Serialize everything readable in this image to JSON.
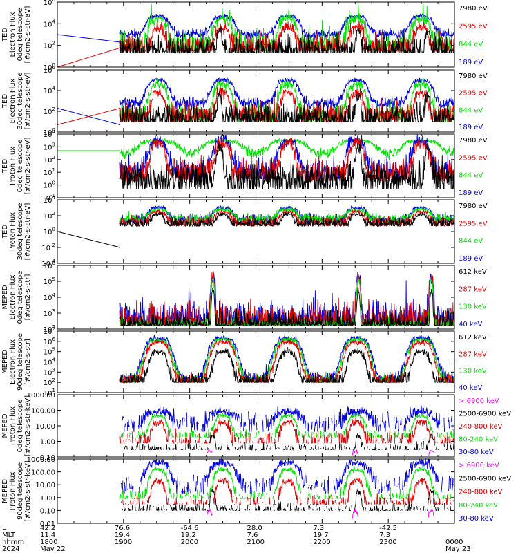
{
  "colors": {
    "black": "#000000",
    "red": "#e00000",
    "green": "#00e000",
    "blue": "#0000e0",
    "magenta": "#ff00ff"
  },
  "chart_data": [
    {
      "type": "line",
      "ylabel": [
        "TED",
        "Electron Flux",
        "0deg telescope",
        "[#/cm2-s-str-eV]"
      ],
      "log_y": true,
      "ylim": [
        1,
        1000000.0
      ],
      "ticks": [
        "10^6",
        "10^4",
        "10^2",
        "10^0"
      ],
      "legend": [
        {
          "label": "7980 eV",
          "color": "black"
        },
        {
          "label": "2595 eV",
          "color": "red"
        },
        {
          "label": "844 eV",
          "color": "green"
        },
        {
          "label": "189 eV",
          "color": "blue"
        }
      ],
      "series": [
        {
          "color": "blue",
          "base": 1000,
          "peak": 50000,
          "noise": 0.35,
          "sharp": 1.3,
          "preline": [
            1000,
            200
          ]
        },
        {
          "color": "green",
          "base": 80,
          "peak": 30000,
          "noise": 0.9,
          "sharp": 1.6,
          "floor": 30,
          "spikes": true
        },
        {
          "color": "red",
          "base": 60,
          "peak": 5000,
          "noise": 0.9,
          "sharp": 2.2,
          "floor": 30,
          "preline": [
            1,
            60
          ]
        },
        {
          "color": "black",
          "base": 30,
          "peak": 2000,
          "noise": 1.0,
          "sharp": 3.0,
          "floor": 20,
          "shape": "belt"
        }
      ]
    },
    {
      "type": "line",
      "ylabel": [
        "TED",
        "Electron Flux",
        "30deg telescope",
        "[#/cm2-s-str-eV]"
      ],
      "log_y": true,
      "ylim": [
        1,
        1000000.0
      ],
      "ticks": [
        "10^6",
        "10^4",
        "10^2",
        "10^0"
      ],
      "legend": [
        {
          "label": "7980 eV",
          "color": "black"
        },
        {
          "label": "2595 eV",
          "color": "red"
        },
        {
          "label": "844 eV",
          "color": "green"
        },
        {
          "label": "189 eV",
          "color": "blue"
        }
      ],
      "series": [
        {
          "color": "blue",
          "base": 600,
          "peak": 100000,
          "noise": 0.4,
          "sharp": 1.3,
          "preline": [
            200,
            5
          ]
        },
        {
          "color": "green",
          "base": 40,
          "peak": 40000,
          "noise": 0.9,
          "sharp": 1.6,
          "floor": 10
        },
        {
          "color": "red",
          "base": 40,
          "peak": 6000,
          "noise": 0.9,
          "sharp": 2.2,
          "floor": 10,
          "preline": [
            5,
            200
          ]
        },
        {
          "color": "black",
          "base": 20,
          "peak": 3000,
          "noise": 1.0,
          "sharp": 3.0,
          "floor": 10,
          "shape": "belt"
        }
      ]
    },
    {
      "type": "line",
      "ylabel": [
        "TED",
        "Proton Flux",
        "0deg telescope",
        "[#/cm2-s-str-eV]"
      ],
      "log_y": true,
      "ylim": [
        0.1,
        10000
      ],
      "ticks": [
        "10^4",
        "10^3",
        "10^2",
        "10^1",
        "10^0",
        "10^-1"
      ],
      "legend": [
        {
          "label": "7980 eV",
          "color": "black"
        },
        {
          "label": "2595 eV",
          "color": "red"
        },
        {
          "label": "844 eV",
          "color": "green"
        },
        {
          "label": "189 eV",
          "color": "blue"
        }
      ],
      "series": [
        {
          "color": "green",
          "base": 300,
          "peak": 3000,
          "noise": 0.3,
          "sharp": 0.8,
          "preline": [
            500,
            500
          ]
        },
        {
          "color": "blue",
          "base": 10,
          "peak": 3000,
          "noise": 0.8,
          "sharp": 1.5,
          "floor": 3
        },
        {
          "color": "red",
          "base": 8,
          "peak": 2000,
          "noise": 0.8,
          "sharp": 2.0,
          "floor": 2
        },
        {
          "color": "black",
          "base": 3,
          "peak": 800,
          "noise": 1.0,
          "sharp": 2.5,
          "floor": 0.5,
          "shape": "belt"
        }
      ]
    },
    {
      "type": "line",
      "ylabel": [
        "TED",
        "Proton Flux",
        "30deg telescope",
        "[#/cm2-s-str-eV]"
      ],
      "log_y": true,
      "ylim": [
        0.0001,
        10000
      ],
      "ticks": [
        "10^4",
        "10^2",
        "10^0",
        "10^-2",
        "10^-4"
      ],
      "legend": [
        {
          "label": "7980 eV",
          "color": "black"
        },
        {
          "label": "2595 eV",
          "color": "red"
        },
        {
          "label": "844 eV",
          "color": "green"
        },
        {
          "label": "189 eV",
          "color": "blue"
        }
      ],
      "series": [
        {
          "color": "blue",
          "base": 30,
          "peak": 1000,
          "noise": 0.5,
          "sharp": 1.6,
          "floor": 5
        },
        {
          "color": "green",
          "base": 40,
          "peak": 600,
          "noise": 0.5,
          "sharp": 1.6,
          "floor": 5
        },
        {
          "color": "red",
          "base": 15,
          "peak": 300,
          "noise": 0.5,
          "sharp": 2.0,
          "floor": 5
        },
        {
          "color": "black",
          "base": 10,
          "peak": 150,
          "noise": 0.5,
          "sharp": 2.5,
          "floor": 5,
          "preline": [
            1,
            0.01
          ]
        }
      ]
    },
    {
      "type": "line",
      "ylabel": [
        "MEPED",
        "Electron Flux",
        "0deg telescope",
        "[#/cm2-s-str]"
      ],
      "log_y": true,
      "ylim": [
        50,
        1000000
      ],
      "ticks": [
        "10^6",
        "10^5",
        "10^4",
        "10^3",
        "10^2"
      ],
      "legend": [
        {
          "label": "612 keV",
          "color": "black"
        },
        {
          "label": "287 keV",
          "color": "red"
        },
        {
          "label": "130 keV",
          "color": "green"
        },
        {
          "label": "40 keV",
          "color": "blue"
        }
      ],
      "series": [
        {
          "color": "blue",
          "base": 200,
          "peak": 200000,
          "noise": 0.9,
          "sharp": 3.0,
          "floor": 90,
          "spikes": true,
          "shape": "belt2"
        },
        {
          "color": "red",
          "base": 150,
          "peak": 150000,
          "noise": 0.9,
          "sharp": 3.5,
          "floor": 90,
          "shape": "belt2"
        },
        {
          "color": "green",
          "base": 100,
          "peak": 100000,
          "noise": 0.3,
          "sharp": 4.0,
          "floor": 90,
          "shape": "belt2"
        },
        {
          "color": "black",
          "base": 100,
          "peak": 20000,
          "noise": 0.6,
          "sharp": 5.0,
          "floor": 90,
          "shape": "belt2"
        }
      ]
    },
    {
      "type": "line",
      "ylabel": [
        "MEPED",
        "Electron Flux",
        "90deg telescope",
        "[#/cm2-s-str]"
      ],
      "log_y": true,
      "ylim": [
        10,
        10000000
      ],
      "ticks": [
        "10^7",
        "10^6",
        "10^5",
        "10^4",
        "10^3",
        "10^2",
        "10^1"
      ],
      "legend": [
        {
          "label": "612 keV",
          "color": "black"
        },
        {
          "label": "287 keV",
          "color": "red"
        },
        {
          "label": "130 keV",
          "color": "green"
        },
        {
          "label": "40 keV",
          "color": "blue"
        }
      ],
      "series": [
        {
          "color": "blue",
          "base": 200,
          "peak": 2000000,
          "noise": 0.5,
          "sharp": 1.0,
          "floor": 100
        },
        {
          "color": "green",
          "base": 150,
          "peak": 1500000,
          "noise": 0.5,
          "sharp": 1.1,
          "floor": 100
        },
        {
          "color": "red",
          "base": 150,
          "peak": 800000,
          "noise": 0.5,
          "sharp": 1.2,
          "floor": 100
        },
        {
          "color": "black",
          "base": 100,
          "peak": 100000,
          "noise": 0.6,
          "sharp": 1.6,
          "floor": 100
        }
      ]
    },
    {
      "type": "line",
      "ylabel": [
        "MEPED",
        "Proton Flux",
        "0deg telescope",
        "[#/cm2-s-str-keV]"
      ],
      "log_y": true,
      "ylim": [
        0.03,
        1000
      ],
      "ticks": [
        "1000.00",
        "100.00",
        "10.00",
        "1.00",
        "0.10"
      ],
      "legend": [
        {
          "label": "> 6900 keV",
          "color": "magenta"
        },
        {
          "label": "2500-6900 keV",
          "color": "black"
        },
        {
          "label": "240-800 keV",
          "color": "red"
        },
        {
          "label": "80-240 keV",
          "color": "green"
        },
        {
          "label": "30-80 keV",
          "color": "blue"
        }
      ],
      "series": [
        {
          "color": "blue",
          "base": 8,
          "peak": 60,
          "noise": 0.6,
          "sharp": 1.2,
          "floor": 2,
          "gappy": true
        },
        {
          "color": "green",
          "base": 1,
          "peak": 30,
          "noise": 0.3,
          "sharp": 1.8,
          "floor": 0.8,
          "gappy": true
        },
        {
          "color": "red",
          "base": 0.4,
          "peak": 10,
          "noise": 0.5,
          "sharp": 2.2,
          "floor": 0.3,
          "gappy": true
        },
        {
          "color": "black",
          "base": 0.1,
          "peak": 1,
          "noise": 0.4,
          "sharp": 3.0,
          "floor": 0.1,
          "gappy": true,
          "shape": "belt2"
        },
        {
          "color": "magenta",
          "base": 0.04,
          "peak": 0.08,
          "noise": 0.2,
          "sharp": 3.5,
          "floor": 0.04,
          "shape": "peaks"
        }
      ]
    },
    {
      "type": "line",
      "ylabel": [
        "MEPED",
        "Proton Flux",
        "90deg telescope",
        "[#/cm2-s-str-keV]"
      ],
      "log_y": true,
      "ylim": [
        0.01,
        1000
      ],
      "ticks": [
        "1000.00",
        "100.00",
        "10.00",
        "1.00",
        "0.10",
        "0.01"
      ],
      "legend": [
        {
          "label": "> 6900 keV",
          "color": "magenta"
        },
        {
          "label": "2500-6900 keV",
          "color": "black"
        },
        {
          "label": "240-800 keV",
          "color": "red"
        },
        {
          "label": "80-240 keV",
          "color": "green"
        },
        {
          "label": "30-80 keV",
          "color": "blue"
        }
      ],
      "series": [
        {
          "color": "blue",
          "base": 8,
          "peak": 500,
          "noise": 0.6,
          "sharp": 1.2,
          "floor": 2,
          "gappy": true
        },
        {
          "color": "green",
          "base": 1,
          "peak": 150,
          "noise": 0.4,
          "sharp": 1.6,
          "floor": 0.8,
          "gappy": true
        },
        {
          "color": "red",
          "base": 0.3,
          "peak": 20,
          "noise": 0.5,
          "sharp": 2.2,
          "floor": 0.3,
          "gappy": true
        },
        {
          "color": "black",
          "base": 0.1,
          "peak": 3,
          "noise": 0.4,
          "sharp": 3.0,
          "floor": 0.1,
          "gappy": true,
          "shape": "belt2"
        },
        {
          "color": "magenta",
          "base": 0.02,
          "peak": 0.1,
          "noise": 0.2,
          "sharp": 3.5,
          "floor": 0.02,
          "shape": "peaks"
        }
      ]
    }
  ],
  "x_axis": {
    "row_labels": [
      "L",
      "MLT",
      "hhmm",
      "2024"
    ],
    "columns": [
      {
        "L": "42.2",
        "MLT": "11.4",
        "hhmm": "1800",
        "date": "May 22"
      },
      {
        "L": "76.6",
        "MLT": "19.4",
        "hhmm": "1900",
        "date": ""
      },
      {
        "L": "-64.6",
        "MLT": "19.2",
        "hhmm": "2000",
        "date": ""
      },
      {
        "L": "28.0",
        "MLT": "7.6",
        "hhmm": "2100",
        "date": ""
      },
      {
        "L": "7.3",
        "MLT": "19.7",
        "hhmm": "2200",
        "date": ""
      },
      {
        "L": "-42.5",
        "MLT": "7.3",
        "hhmm": "2300",
        "date": ""
      },
      {
        "L": "",
        "MLT": "",
        "hhmm": "0000",
        "date": "May 23"
      }
    ]
  }
}
